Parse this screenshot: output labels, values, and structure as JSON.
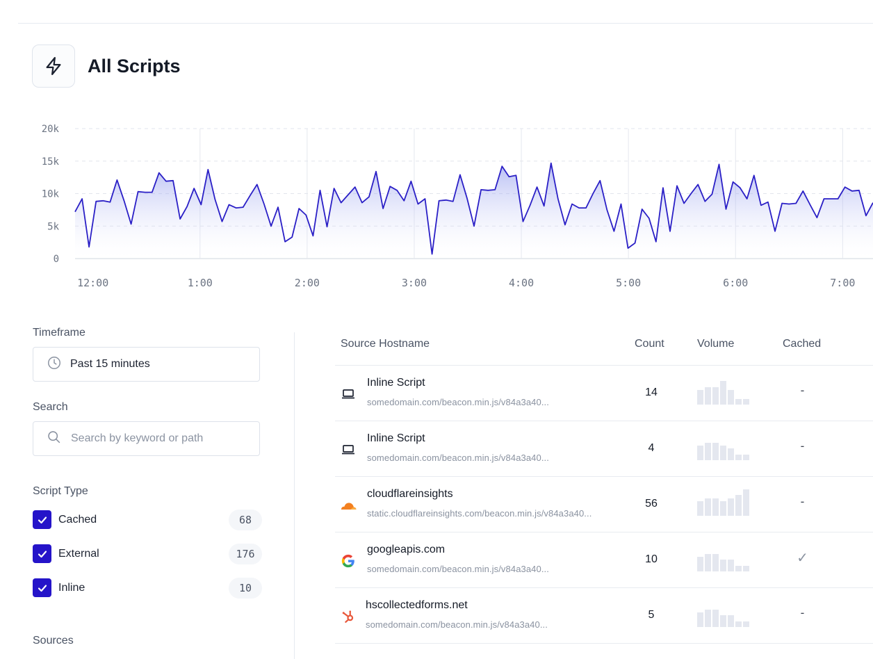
{
  "header": {
    "title": "All Scripts",
    "icon": "lightning-bolt-icon"
  },
  "chart_data": {
    "type": "area",
    "title": "",
    "xlabel": "",
    "ylabel": "",
    "ylim": [
      0,
      20000
    ],
    "y_ticks": [
      "0",
      "5k",
      "10k",
      "15k",
      "20k"
    ],
    "x_tick_labels": [
      "12:00",
      "1:00",
      "2:00",
      "3:00",
      "4:00",
      "5:00",
      "6:00",
      "7:00"
    ],
    "x_start_minutes": -10,
    "x_end_minutes": 437,
    "colors": {
      "line": "#2a1fc6",
      "fill_top": "#7a86ea",
      "fill_bottom": "#ffffff",
      "grid": "#e4e7ee"
    },
    "series": [
      {
        "values": [
          7200,
          9200,
          1800,
          8800,
          8900,
          8700,
          12100,
          8900,
          5300,
          10300,
          10200,
          10200,
          13200,
          11900,
          12000,
          6100,
          8000,
          10800,
          8300,
          13700,
          9100,
          5700,
          8300,
          7800,
          7900,
          9700,
          11400,
          8400,
          5000,
          7900,
          2600,
          3300,
          7700,
          6700,
          3500,
          10500,
          4900,
          10800,
          8600,
          9800,
          11000,
          8600,
          9500,
          13400,
          7700,
          11100,
          10500,
          8900,
          11900,
          8400,
          9200,
          700,
          8900,
          9000,
          8800,
          12900,
          9300,
          5000,
          10600,
          10500,
          10600,
          14200,
          12600,
          12800,
          5700,
          8200,
          11000,
          8100,
          14700,
          9200,
          5200,
          8400,
          7800,
          7800,
          10000,
          12000,
          7500,
          4200,
          8400,
          1600,
          2400,
          7600,
          6200,
          2600,
          10900,
          4200,
          11200,
          8500,
          10000,
          11400,
          8800,
          9900,
          14500,
          7600,
          11800,
          10900,
          9200,
          12800,
          8200,
          8700,
          4200,
          8500,
          8400,
          8500,
          10400,
          8300,
          6300,
          9200,
          9200,
          9200,
          11000,
          10400,
          10500,
          6600,
          8600
        ]
      }
    ]
  },
  "filters": {
    "timeframe": {
      "label": "Timeframe",
      "value": "Past 15 minutes"
    },
    "search": {
      "label": "Search",
      "placeholder": "Search by keyword or path",
      "value": ""
    },
    "script_type": {
      "label": "Script Type",
      "options": [
        {
          "label": "Cached",
          "count": "68",
          "checked": true
        },
        {
          "label": "External",
          "count": "176",
          "checked": true
        },
        {
          "label": "Inline",
          "count": "10",
          "checked": true
        }
      ]
    },
    "sources_label": "Sources"
  },
  "table": {
    "columns": [
      "Source Hostname",
      "Count",
      "Volume",
      "Cached"
    ],
    "rows": [
      {
        "icon": "laptop-icon",
        "name": "Inline Script",
        "path": "somedomain.com/beacon.min.js/v84a3a40...",
        "count": "14",
        "cached": "-",
        "volume": [
          5,
          6,
          6,
          8,
          5,
          2,
          2
        ]
      },
      {
        "icon": "laptop-icon",
        "name": "Inline Script",
        "path": "somedomain.com/beacon.min.js/v84a3a40...",
        "count": "4",
        "cached": "-",
        "volume": [
          5,
          6,
          6,
          5,
          4,
          2,
          2
        ]
      },
      {
        "icon": "cloudflare-icon",
        "name": "cloudflareinsights",
        "path": "static.cloudflareinsights.com/beacon.min.js/v84a3a40...",
        "count": "56",
        "cached": "-",
        "volume": [
          5,
          6,
          6,
          5,
          6,
          7,
          9
        ]
      },
      {
        "icon": "google-icon",
        "name": "googleapis.com",
        "path": "somedomain.com/beacon.min.js/v84a3a40...",
        "count": "10",
        "cached": "✓",
        "volume": [
          5,
          6,
          6,
          4,
          4,
          2,
          2
        ]
      },
      {
        "icon": "hubspot-icon",
        "name": "hscollectedforms.net",
        "path": "somedomain.com/beacon.min.js/v84a3a40...",
        "count": "5",
        "cached": "-",
        "volume": [
          5,
          6,
          6,
          4,
          4,
          2,
          2
        ]
      }
    ]
  }
}
